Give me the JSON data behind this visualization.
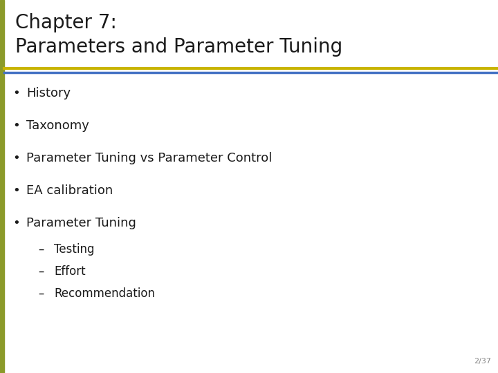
{
  "title_line1": "Chapter 7:",
  "title_line2": "Parameters and Parameter Tuning",
  "bullet_items": [
    "History",
    "Taxonomy",
    "Parameter Tuning vs Parameter Control",
    "EA calibration",
    "Parameter Tuning"
  ],
  "sub_items": [
    "Testing",
    "Effort",
    "Recommendation"
  ],
  "bg_color": "#ffffff",
  "title_color": "#1a1a1a",
  "text_color": "#1a1a1a",
  "left_bar_color": "#8b9a2a",
  "separator_gold_color": "#c8b400",
  "separator_blue_color": "#4472c4",
  "page_number": "2/37",
  "title_fontsize": 20,
  "bullet_fontsize": 13,
  "sub_fontsize": 12
}
